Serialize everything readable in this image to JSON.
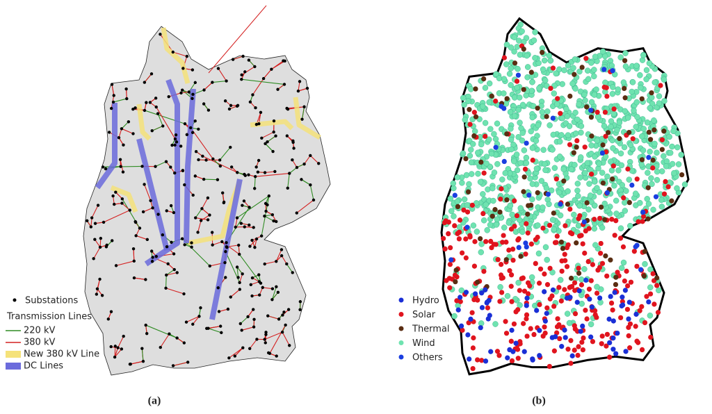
{
  "panels": [
    {
      "caption": "(a)",
      "legend": {
        "title": "Transmission Lines",
        "items": [
          {
            "label": "Substations",
            "color": "#000000"
          },
          {
            "label": "220 kV",
            "color": "#2e8b22"
          },
          {
            "label": "380 kV",
            "color": "#d42020"
          },
          {
            "label": "New 380 kV Line",
            "color": "#f5e27a"
          },
          {
            "label": "DC Lines",
            "color": "#6b6bdc"
          }
        ]
      }
    },
    {
      "caption": "(b)",
      "legend": {
        "items": [
          {
            "label": "Hydro",
            "color": "#1a2fd6"
          },
          {
            "label": "Solar",
            "color": "#e0141e"
          },
          {
            "label": "Thermal",
            "color": "#5a2d12"
          },
          {
            "label": "Wind",
            "color": "#6fe3b0"
          },
          {
            "label": "Others",
            "color": "#1a3ee0"
          }
        ]
      }
    }
  ]
}
